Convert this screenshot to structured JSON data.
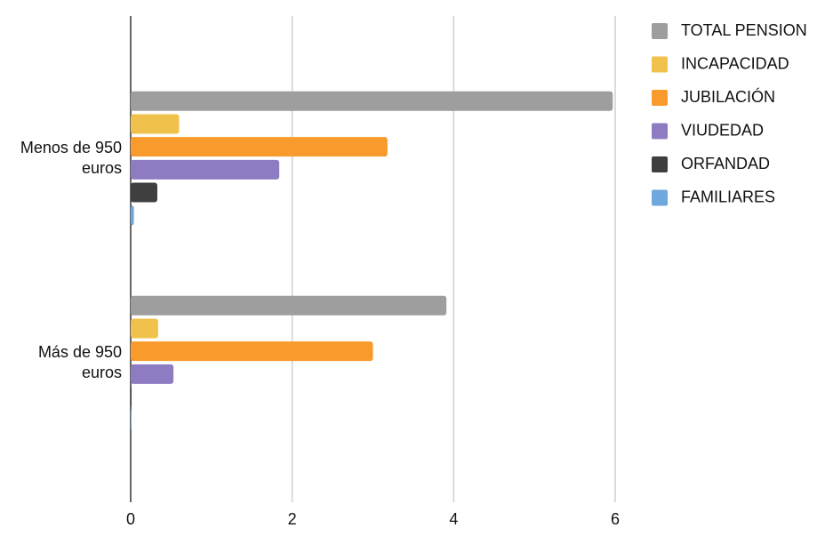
{
  "chart_data": {
    "type": "bar",
    "orientation": "horizontal",
    "categories": [
      "Menos de 950 euros",
      "Más de 950 euros"
    ],
    "series": [
      {
        "name": "TOTAL PENSION",
        "color": "#9e9e9e",
        "values": [
          5.97,
          3.91
        ]
      },
      {
        "name": "INCAPACIDAD",
        "color": "#f1c24b",
        "values": [
          0.6,
          0.34
        ]
      },
      {
        "name": "JUBILACIÓN",
        "color": "#f99a2c",
        "values": [
          3.18,
          3.0
        ]
      },
      {
        "name": "VIUDEDAD",
        "color": "#8e7cc3",
        "values": [
          1.84,
          0.53
        ]
      },
      {
        "name": "ORFANDAD",
        "color": "#3f3f3f",
        "values": [
          0.33,
          0.01
        ]
      },
      {
        "name": "FAMILIARES",
        "color": "#6fa8dc",
        "values": [
          0.04,
          0.005
        ]
      }
    ],
    "xlim": [
      0,
      6
    ],
    "xticks": [
      0,
      2,
      4,
      6
    ],
    "grid": true,
    "legend": "right"
  }
}
